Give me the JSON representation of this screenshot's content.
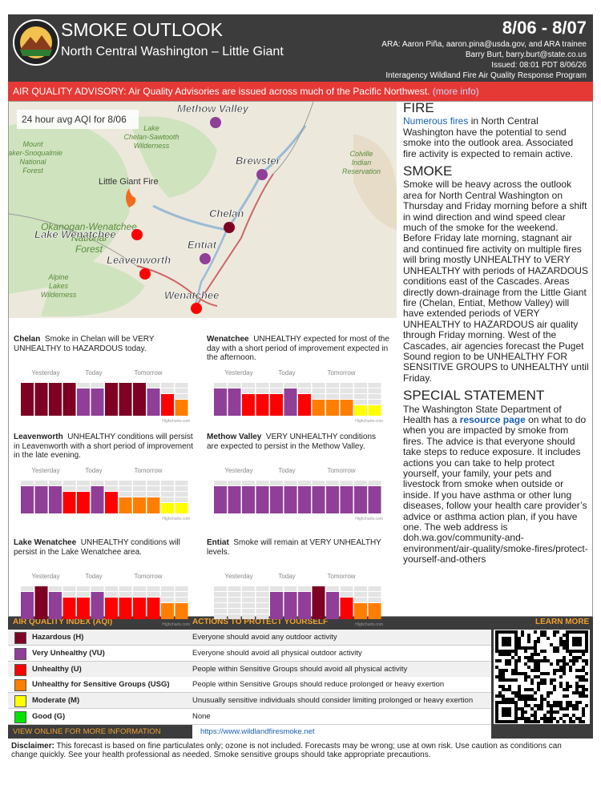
{
  "header": {
    "title": "SMOKE OUTLOOK",
    "subtitle": "North Central Washington – Little Giant",
    "dates": "8/06 - 8/07",
    "credits": [
      "ARA: Aaron Piña, aaron.pina@usda.gov, and ARA trainee",
      "Barry Burt, barry.burt@state.co.us",
      "Issued: 08:01 PDT 8/06/26",
      "Interagency Wildland Fire Air Quality Response Program"
    ]
  },
  "advisory": {
    "text": "AIR QUALITY ADVISORY: Air Quality Advisories are issued across much of the Pacific Northwest.",
    "link": "(more info)"
  },
  "map": {
    "caption": "24 hour avg AQI for 8/06",
    "fire": "Little Giant Fire",
    "areas": [
      "Lake Chelan-Sawtooth Wilderness",
      "Mount Baker-Snoqualmie National Forest",
      "Colville Indian Reservation",
      "Okanogan-Wenatchee National Forest",
      "Alpine Lakes Wilderness"
    ],
    "sites": [
      {
        "name": "Methow Valley",
        "level": 5
      },
      {
        "name": "Brewster",
        "level": 5
      },
      {
        "name": "Chelan",
        "level": 6
      },
      {
        "name": "Entiat",
        "level": 5
      },
      {
        "name": "Lake Wenatchee",
        "level": 4
      },
      {
        "name": "Leavenworth",
        "level": 4
      },
      {
        "name": "Wenatchee",
        "level": 4
      }
    ]
  },
  "forecast_labels": {
    "periods": [
      "Yesterday",
      "Today",
      "Tomorrow"
    ],
    "credit": "Highcharts.com"
  },
  "forecasts": [
    {
      "name": "Chelan",
      "text": "Smoke in Chelan will be VERY UNHEALTHY to HAZARDOUS today.",
      "levels": [
        6,
        6,
        6,
        6,
        5,
        5,
        6,
        6,
        6,
        5,
        4,
        3
      ]
    },
    {
      "name": "Wenatchee",
      "text": "UNHEALTHY expected for most of the day with a short period of improvement expected in the afternoon.",
      "levels": [
        5,
        5,
        4,
        4,
        4,
        5,
        4,
        3,
        3,
        3,
        2,
        2
      ]
    },
    {
      "name": "Leavenworth",
      "text": "UNHEALTHY conditions will persist in Leavenworth with a short period of improvement in the late evening.",
      "levels": [
        5,
        5,
        5,
        4,
        4,
        5,
        4,
        3,
        3,
        3,
        2,
        2
      ]
    },
    {
      "name": "Methow Valley",
      "text": "VERY UNHEALTHY conditions are expected to persist in the Methow Valley.",
      "levels": [
        5,
        5,
        5,
        5,
        5,
        5,
        5,
        5,
        5,
        5,
        5,
        5
      ]
    },
    {
      "name": "Lake Wenatchee",
      "text": "UNHEALTHY conditions will persist in the Lake Wenatchee area.",
      "levels": [
        5,
        6,
        5,
        4,
        4,
        5,
        4,
        4,
        4,
        4,
        3,
        3
      ]
    },
    {
      "name": "Entiat",
      "text": "Smoke will remain at VERY UNHEALTHY levels.",
      "levels": [
        null,
        null,
        null,
        null,
        5,
        5,
        5,
        6,
        5,
        4,
        3,
        3
      ]
    }
  ],
  "fire": {
    "heading": "FIRE",
    "link": "Numerous fires",
    "text": " in North Central Washington have the potential to send smoke into the outlook area. Associated fire activity is expected to remain active."
  },
  "smoke": {
    "heading": "SMOKE",
    "text": "Smoke will be heavy across the outlook area for North Central Washington on Thursday and Friday morning before a shift in wind direction and wind speed clear much of the smoke for the weekend. Before Friday late morning, stagnant air and continued fire activity on multiple fires will bring mostly UNHEALTHY to VERY UNHEALTHY with periods of HAZARDOUS conditions east of the Cascades. Areas directly down-drainage from the Little Giant fire (Chelan, Entiat, Methow Valley) will have extended periods of VERY UNHEALTHY to HAZARDOUS air quality through Friday morning. West of the Cascades, air agencies forecast the Puget Sound region to be UNHEALTHY FOR SENSITIVE GROUPS to UNHEALTHY until Friday."
  },
  "special": {
    "heading": "SPECIAL STATEMENT",
    "before": "The Washington State Department of Health has a ",
    "link": "resource page",
    "after": " on what to do when you are impacted by smoke from fires. The advice is that everyone should take steps to reduce exposure. It includes actions you can take to help protect yourself, your family, your pets and livestock from smoke when outside or inside. If you have asthma or other lung diseases, follow your health care provider’s advice or asthma action plan, if you have one. The web address is doh.wa.gov/community-and-environment/air-quality/smoke-fires/protect-yourself-and-others"
  },
  "aqi": {
    "headers": [
      "AIR QUALITY INDEX (AQI)",
      "ACTIONS TO PROTECT YOURSELF",
      "LEARN MORE"
    ],
    "levels": [
      {
        "name": "Hazardous (H)",
        "color": "#7e0023",
        "action": "Everyone should avoid any outdoor activity"
      },
      {
        "name": "Very Unhealthy (VU)",
        "color": "#8f3f97",
        "action": "Everyone should avoid all physical outdoor activity"
      },
      {
        "name": "Unhealthy (U)",
        "color": "#ff0000",
        "action": "People within Sensitive Groups should avoid all physical activity"
      },
      {
        "name": "Unhealthy for Sensitive Groups (USG)",
        "color": "#ff7e00",
        "action": "People within Sensitive Groups should reduce prolonged or heavy exertion"
      },
      {
        "name": "Moderate (M)",
        "color": "#ffff00",
        "action": "Unusually sensitive individuals should consider limiting prolonged or heavy exertion"
      },
      {
        "name": "Good (G)",
        "color": "#00e400",
        "action": "None"
      }
    ],
    "footer_label": "VIEW ONLINE FOR MORE INFORMATION",
    "url": "https://www.wildlandfiresmoke.net"
  },
  "disclaimer": {
    "label": "Disclaimer:",
    "text": " This forecast is based on fine particulates only; ozone is not included. Forecasts may be wrong; use at own risk. Use caution as conditions can change quickly. See your health professional as needed. Smoke sensitive groups should take appropriate precautions."
  }
}
